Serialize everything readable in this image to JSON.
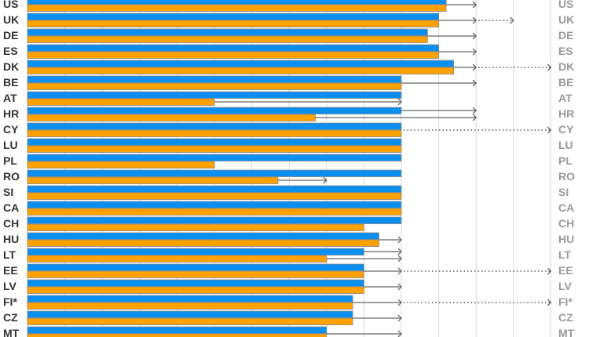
{
  "chart_data": {
    "type": "bar",
    "orientation": "horizontal",
    "title": "",
    "xlabel": "",
    "ylabel": "",
    "xlim": [
      0,
      14
    ],
    "grid": true,
    "colors": {
      "series1": "#0a8ff0",
      "series2": "#ffa200",
      "arrow": "#666666"
    },
    "categories": [
      "US",
      "UK",
      "DE",
      "ES",
      "DK",
      "BE",
      "AT",
      "HR",
      "CY",
      "LU",
      "PL",
      "RO",
      "SI",
      "CA",
      "CH",
      "HU",
      "LT",
      "EE",
      "LV",
      "FI*",
      "CZ",
      "MT"
    ],
    "series": [
      {
        "values": [
          11.2,
          11.0,
          10.7,
          11.0,
          11.4,
          10.0,
          10.0,
          10.0,
          10.0,
          10.0,
          10.0,
          10.0,
          10.0,
          10.0,
          10.0,
          9.4,
          9.0,
          9.0,
          9.0,
          8.7,
          8.7,
          8.0
        ]
      },
      {
        "values": [
          11.2,
          11.0,
          10.7,
          11.0,
          11.4,
          10.0,
          5.0,
          7.7,
          10.0,
          10.0,
          5.0,
          6.7,
          10.0,
          10.0,
          9.0,
          9.4,
          8.0,
          9.0,
          9.0,
          8.7,
          8.7,
          8.0
        ]
      }
    ],
    "arrows": [
      {
        "row": "US",
        "series": "both",
        "to": 12
      },
      {
        "row": "UK",
        "series": "both",
        "to": 12,
        "dotted_to": 13
      },
      {
        "row": "DE",
        "series": "both",
        "to": 12
      },
      {
        "row": "ES",
        "series": "both",
        "to": 12
      },
      {
        "row": "DK",
        "series": "both",
        "to": 12,
        "dotted_to": 14
      },
      {
        "row": "BE",
        "series": "both",
        "to": 12
      },
      {
        "row": "AT",
        "series": "series2",
        "to": 10
      },
      {
        "row": "HR",
        "series": "series1",
        "to": 12
      },
      {
        "row": "HR",
        "series": "series2",
        "to": 12
      },
      {
        "row": "CY",
        "series": "both",
        "dotted_to": 14
      },
      {
        "row": "RO",
        "series": "series2",
        "to": 8
      },
      {
        "row": "HU",
        "series": "both",
        "to": 10
      },
      {
        "row": "LT",
        "series": "series1",
        "to": 10
      },
      {
        "row": "LT",
        "series": "series2",
        "to": 10
      },
      {
        "row": "EE",
        "series": "both",
        "to": 10,
        "dotted_to": 14
      },
      {
        "row": "LV",
        "series": "both",
        "to": 10
      },
      {
        "row": "FI*",
        "series": "both",
        "to": 10,
        "dotted_to": 14
      },
      {
        "row": "CZ",
        "series": "both",
        "to": 10
      },
      {
        "row": "MT",
        "series": "both",
        "to": 10
      }
    ]
  }
}
